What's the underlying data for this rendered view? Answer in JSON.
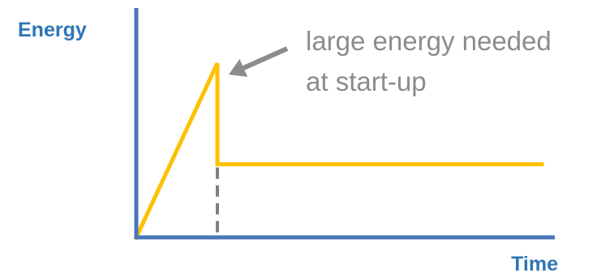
{
  "chart_data": {
    "type": "line",
    "title": "",
    "xlabel": "Time",
    "ylabel": "Energy",
    "grid": false,
    "ticks": false,
    "series": [
      {
        "x": [
          0,
          1,
          1,
          5
        ],
        "y": [
          0,
          10,
          4.2,
          4.2
        ]
      }
    ],
    "xlim": [
      0,
      5
    ],
    "ylim": [
      0,
      12
    ],
    "reference_line": {
      "x": 1,
      "style": "dashed"
    },
    "annotation": {
      "lines": [
        "large energy needed",
        "at start-up"
      ],
      "target": {
        "x": 1,
        "y": 10
      }
    }
  },
  "colors": {
    "axis": "#4a76b9",
    "axis_label": "#2e75b6",
    "series": "#ffc000",
    "reference_line": "#7f7f7f",
    "annotation": "#8c8c8c"
  }
}
